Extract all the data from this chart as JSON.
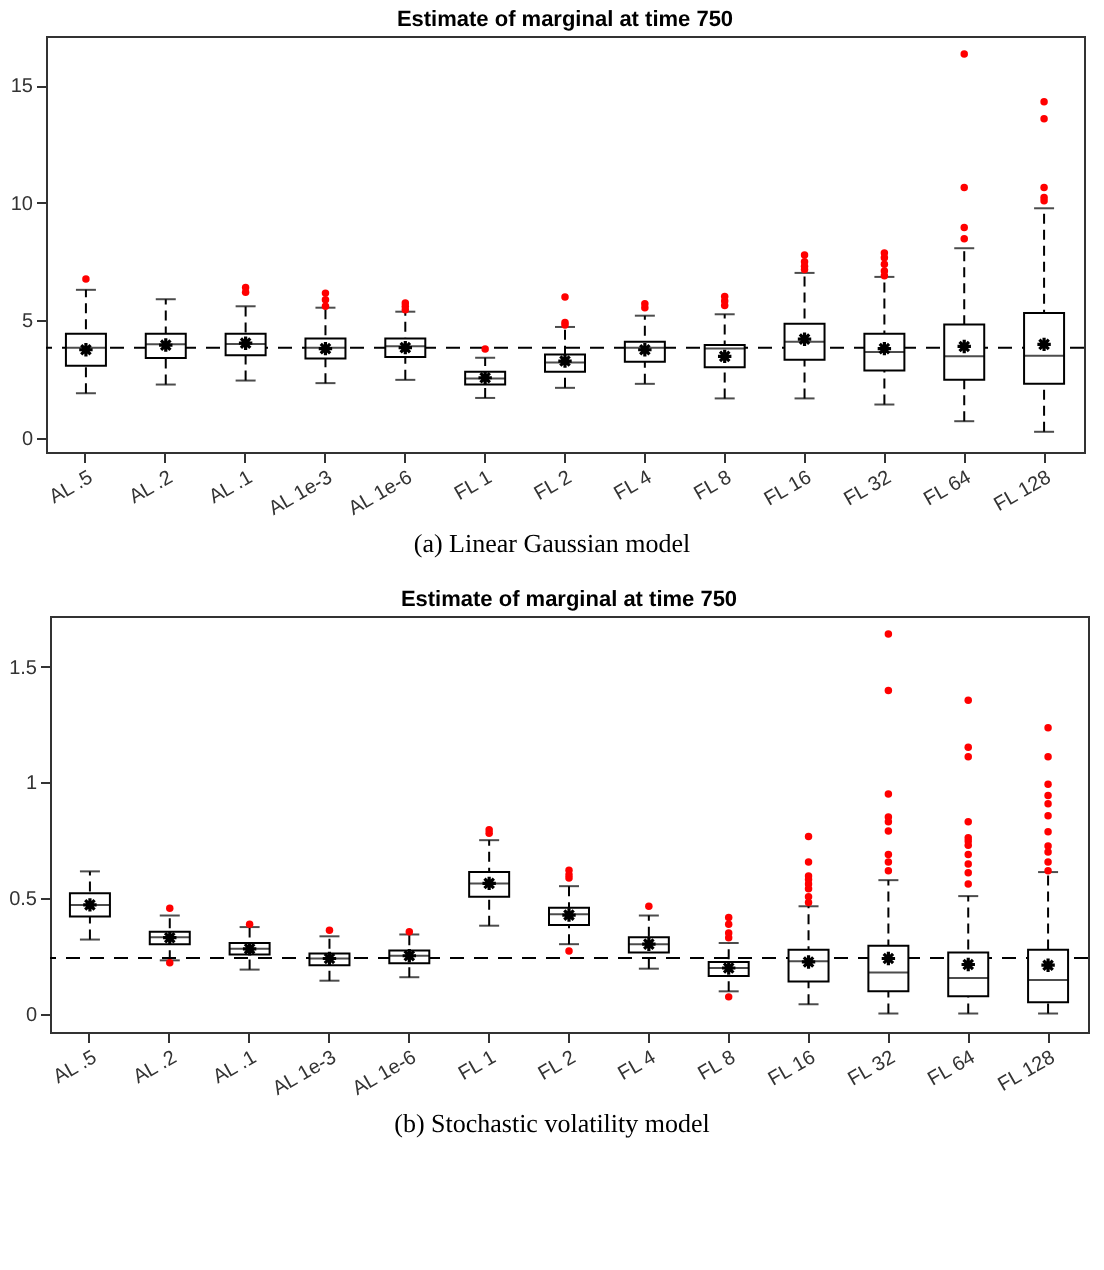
{
  "chart_data": [
    {
      "type": "box",
      "title": "Estimate of marginal at time 750",
      "categories": [
        "AL .5",
        "AL .2",
        "AL .1",
        "AL 1e-3",
        "AL 1e-6",
        "FL 1",
        "FL 2",
        "FL 4",
        "FL 8",
        "FL 16",
        "FL 32",
        "FL 64",
        "FL 128"
      ],
      "boxes": [
        {
          "low": 1.9,
          "q1": 3.07,
          "median": 3.84,
          "q3": 4.43,
          "high": 6.3,
          "mean": 3.75,
          "outliers": [
            6.76
          ]
        },
        {
          "low": 2.27,
          "q1": 3.4,
          "median": 3.98,
          "q3": 4.43,
          "high": 5.9,
          "mean": 3.95
        },
        {
          "low": 2.44,
          "q1": 3.52,
          "median": 4.0,
          "q3": 4.43,
          "high": 5.6,
          "mean": 4.03,
          "outliers": [
            6.4,
            6.2
          ]
        },
        {
          "low": 2.33,
          "q1": 3.38,
          "median": 3.84,
          "q3": 4.23,
          "high": 5.54,
          "mean": 3.8,
          "outliers": [
            6.16,
            5.88,
            5.6
          ]
        },
        {
          "low": 2.47,
          "q1": 3.44,
          "median": 3.9,
          "q3": 4.23,
          "high": 5.37,
          "mean": 3.84,
          "outliers": [
            5.74,
            5.6,
            5.45
          ]
        },
        {
          "low": 1.7,
          "q1": 2.27,
          "median": 2.53,
          "q3": 2.81,
          "high": 3.41,
          "mean": 2.56,
          "outliers": [
            3.78
          ]
        },
        {
          "low": 2.13,
          "q1": 2.81,
          "median": 3.21,
          "q3": 3.55,
          "high": 4.72,
          "mean": 3.27,
          "outliers": [
            5.99,
            4.91,
            4.8
          ]
        },
        {
          "low": 2.3,
          "q1": 3.24,
          "median": 3.84,
          "q3": 4.09,
          "high": 5.2,
          "mean": 3.75,
          "outliers": [
            5.71,
            5.54
          ]
        },
        {
          "low": 1.68,
          "q1": 3.01,
          "median": 3.8,
          "q3": 3.95,
          "high": 5.26,
          "mean": 3.47,
          "outliers": [
            6.02,
            5.82,
            5.63
          ]
        },
        {
          "low": 1.68,
          "q1": 3.32,
          "median": 4.09,
          "q3": 4.86,
          "high": 7.02,
          "mean": 4.2,
          "outliers": [
            7.78,
            7.5,
            7.3,
            7.16
          ]
        },
        {
          "low": 1.42,
          "q1": 2.87,
          "median": 3.66,
          "q3": 4.43,
          "high": 6.85,
          "mean": 3.8,
          "outliers": [
            7.87,
            7.67,
            7.39,
            7.1,
            6.9
          ]
        },
        {
          "low": 0.71,
          "q1": 2.47,
          "median": 3.47,
          "q3": 4.83,
          "high": 8.07,
          "mean": 3.89,
          "outliers": [
            16.33,
            10.65,
            8.95,
            8.47
          ]
        },
        {
          "low": 0.26,
          "q1": 2.3,
          "median": 3.49,
          "q3": 5.31,
          "high": 9.77,
          "mean": 3.98,
          "outliers": [
            14.3,
            13.58,
            10.65,
            10.23,
            10.09
          ]
        }
      ],
      "ylim": [
        -0.6,
        17.1
      ],
      "yticks": [
        0,
        5,
        10,
        15
      ],
      "ref_lines": [
        {
          "axis": "y",
          "value": 3.84,
          "line_style": "dashed"
        }
      ],
      "annotations": [
        "(a) Linear Gaussian model"
      ]
    },
    {
      "type": "box",
      "title": "Estimate of marginal at time 750",
      "categories": [
        "AL .5",
        "AL .2",
        "AL .1",
        "AL 1e-3",
        "AL 1e-6",
        "FL 1",
        "FL 2",
        "FL 4",
        "FL 8",
        "FL 16",
        "FL 32",
        "FL 64",
        "FL 128"
      ],
      "boxes": [
        {
          "low": 0.32,
          "q1": 0.42,
          "median": 0.47,
          "q3": 0.52,
          "high": 0.615,
          "mean": 0.47
        },
        {
          "low": 0.23,
          "q1": 0.3,
          "median": 0.33,
          "q3": 0.354,
          "high": 0.424,
          "mean": 0.328,
          "outliers": [
            0.455,
            0.22
          ]
        },
        {
          "low": 0.19,
          "q1": 0.255,
          "median": 0.28,
          "q3": 0.305,
          "high": 0.374,
          "mean": 0.28,
          "outliers": [
            0.386
          ]
        },
        {
          "low": 0.142,
          "q1": 0.209,
          "median": 0.238,
          "q3": 0.26,
          "high": 0.334,
          "mean": 0.238,
          "outliers": [
            0.36
          ]
        },
        {
          "low": 0.157,
          "q1": 0.218,
          "median": 0.25,
          "q3": 0.273,
          "high": 0.342,
          "mean": 0.25,
          "outliers": [
            0.354
          ]
        },
        {
          "low": 0.38,
          "q1": 0.505,
          "median": 0.563,
          "q3": 0.612,
          "high": 0.75,
          "mean": 0.563,
          "outliers": [
            0.795,
            0.78
          ]
        },
        {
          "low": 0.3,
          "q1": 0.383,
          "median": 0.43,
          "q3": 0.458,
          "high": 0.551,
          "mean": 0.426,
          "outliers": [
            0.62,
            0.6,
            0.586,
            0.27
          ]
        },
        {
          "low": 0.194,
          "q1": 0.264,
          "median": 0.3,
          "q3": 0.33,
          "high": 0.424,
          "mean": 0.3,
          "outliers": [
            0.464
          ]
        },
        {
          "low": 0.096,
          "q1": 0.162,
          "median": 0.197,
          "q3": 0.223,
          "high": 0.305,
          "mean": 0.197,
          "outliers": [
            0.415,
            0.386,
            0.348,
            0.328,
            0.072
          ]
        },
        {
          "low": 0.04,
          "q1": 0.139,
          "median": 0.226,
          "q3": 0.276,
          "high": 0.464,
          "mean": 0.223,
          "outliers": [
            0.766,
            0.656,
            0.595,
            0.58,
            0.56,
            0.54,
            0.505,
            0.48
          ]
        },
        {
          "low": 0.0,
          "q1": 0.096,
          "median": 0.177,
          "q3": 0.293,
          "high": 0.577,
          "mean": 0.238,
          "outliers": [
            1.642,
            1.398,
            0.95,
            0.85,
            0.83,
            0.79,
            0.688,
            0.656,
            0.618
          ]
        },
        {
          "low": 0.0,
          "q1": 0.075,
          "median": 0.154,
          "q3": 0.264,
          "high": 0.508,
          "mean": 0.212,
          "outliers": [
            1.355,
            1.152,
            1.111,
            0.83,
            0.76,
            0.746,
            0.728,
            0.688,
            0.647,
            0.609,
            0.56
          ]
        },
        {
          "low": 0.0,
          "q1": 0.049,
          "median": 0.145,
          "q3": 0.276,
          "high": 0.612,
          "mean": 0.209,
          "outliers": [
            1.236,
            1.111,
            0.992,
            0.943,
            0.908,
            0.856,
            0.786,
            0.725,
            0.699,
            0.656,
            0.618
          ]
        }
      ],
      "ylim": [
        -0.08,
        1.72
      ],
      "yticks": [
        0,
        0.5,
        1,
        1.5
      ],
      "ref_lines": [
        {
          "axis": "y",
          "value": 0.24,
          "line_style": "dashed"
        }
      ],
      "annotations": [
        "(b) Stochastic volatility model"
      ]
    }
  ]
}
